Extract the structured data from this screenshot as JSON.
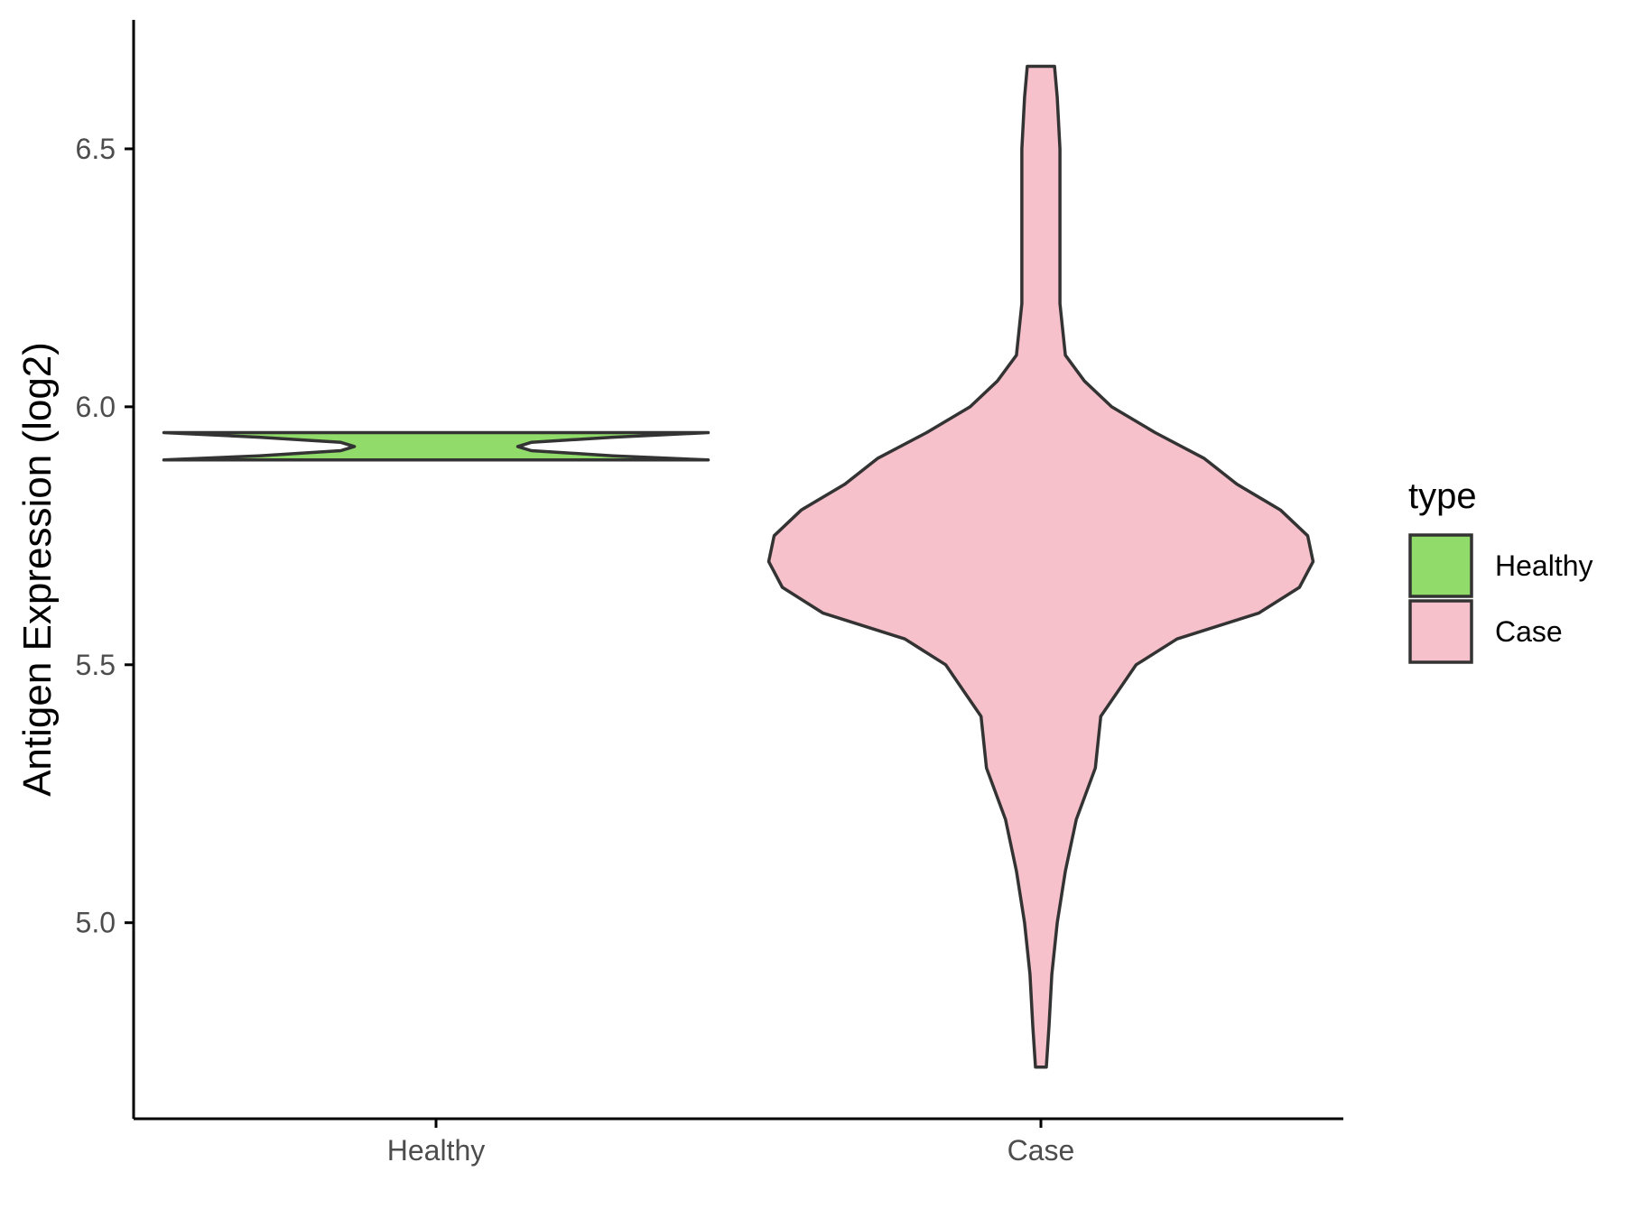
{
  "chart_data": {
    "type": "violin",
    "categories": [
      "Healthy",
      "Case"
    ],
    "ylabel": "Antigen Expression (log2)",
    "xlabel": "",
    "ylim": [
      4.62,
      6.75
    ],
    "yticks": [
      5.0,
      5.5,
      6.0,
      6.5
    ],
    "ytick_labels": [
      "5.0",
      "5.5",
      "6.0",
      "6.5"
    ],
    "grid": false,
    "legend": {
      "title": "type",
      "placement": "right",
      "entries": [
        {
          "label": "Healthy",
          "color": "#90DB6A"
        },
        {
          "label": "Case",
          "color": "#F7C1CC"
        }
      ]
    },
    "series": [
      {
        "name": "Healthy",
        "color": "#90DB6A",
        "range": [
          5.897,
          5.95
        ],
        "density_profile": [
          [
            5.897,
            1.0
          ],
          [
            5.905,
            0.65
          ],
          [
            5.915,
            0.35
          ],
          [
            5.923,
            0.3
          ],
          [
            5.931,
            0.35
          ],
          [
            5.941,
            0.65
          ],
          [
            5.95,
            1.0
          ]
        ]
      },
      {
        "name": "Case",
        "color": "#F7C1CC",
        "range": [
          4.72,
          6.66
        ],
        "density_profile": [
          [
            4.72,
            0.02
          ],
          [
            4.8,
            0.03
          ],
          [
            4.9,
            0.04
          ],
          [
            5.0,
            0.06
          ],
          [
            5.1,
            0.09
          ],
          [
            5.2,
            0.13
          ],
          [
            5.3,
            0.2
          ],
          [
            5.4,
            0.22
          ],
          [
            5.5,
            0.35
          ],
          [
            5.55,
            0.5
          ],
          [
            5.6,
            0.8
          ],
          [
            5.65,
            0.95
          ],
          [
            5.7,
            1.0
          ],
          [
            5.75,
            0.98
          ],
          [
            5.8,
            0.88
          ],
          [
            5.85,
            0.72
          ],
          [
            5.9,
            0.6
          ],
          [
            5.95,
            0.42
          ],
          [
            6.0,
            0.26
          ],
          [
            6.05,
            0.16
          ],
          [
            6.1,
            0.09
          ],
          [
            6.2,
            0.07
          ],
          [
            6.3,
            0.07
          ],
          [
            6.4,
            0.07
          ],
          [
            6.5,
            0.07
          ],
          [
            6.6,
            0.06
          ],
          [
            6.66,
            0.05
          ]
        ]
      }
    ]
  }
}
